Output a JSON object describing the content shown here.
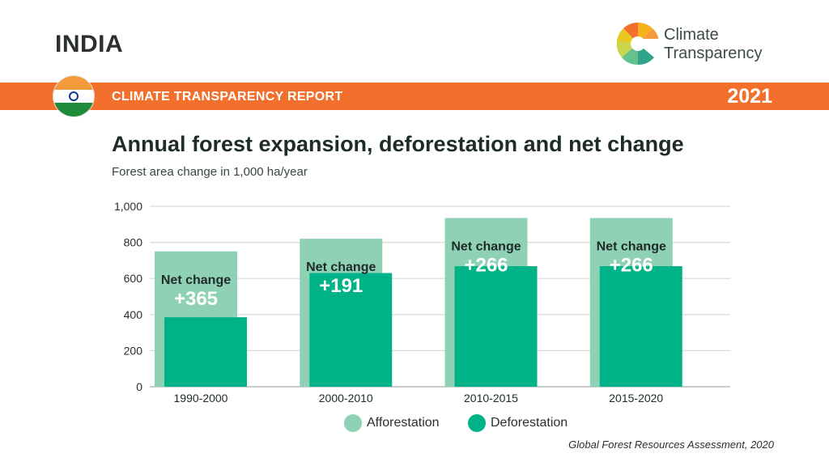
{
  "header": {
    "country": "INDIA",
    "report_title": "CLIMATE TRANSPARENCY REPORT",
    "year": "2021",
    "logo_line1": "Climate",
    "logo_line2": "Transparency"
  },
  "colors": {
    "orange": "#f26f2c",
    "afforestation": "#8fd1b5",
    "deforestation": "#00b287",
    "flag_saffron": "#f39a3b",
    "flag_green": "#1e8a3a"
  },
  "chart_data": {
    "type": "bar",
    "title": "Annual forest expansion, deforestation and net change",
    "subtitle": "Forest area change in 1,000 ha/year",
    "categories": [
      "1990-2000",
      "2000-2010",
      "2010-2015",
      "2015-2020"
    ],
    "series": [
      {
        "name": "Afforestation",
        "values": [
          750,
          820,
          935,
          935
        ]
      },
      {
        "name": "Deforestation",
        "values": [
          385,
          630,
          668,
          668
        ]
      }
    ],
    "net_change_label": "Net change",
    "net_change": [
      "+365",
      "+191",
      "+266",
      "+266"
    ],
    "ylim": [
      0,
      1000
    ],
    "yticks": [
      0,
      200,
      400,
      600,
      800,
      1000
    ],
    "ytick_labels": [
      "0",
      "200",
      "400",
      "600",
      "800",
      "1,000"
    ],
    "grid": true,
    "legend": "bottom",
    "source": "Global Forest Resources Assessment, 2020"
  }
}
